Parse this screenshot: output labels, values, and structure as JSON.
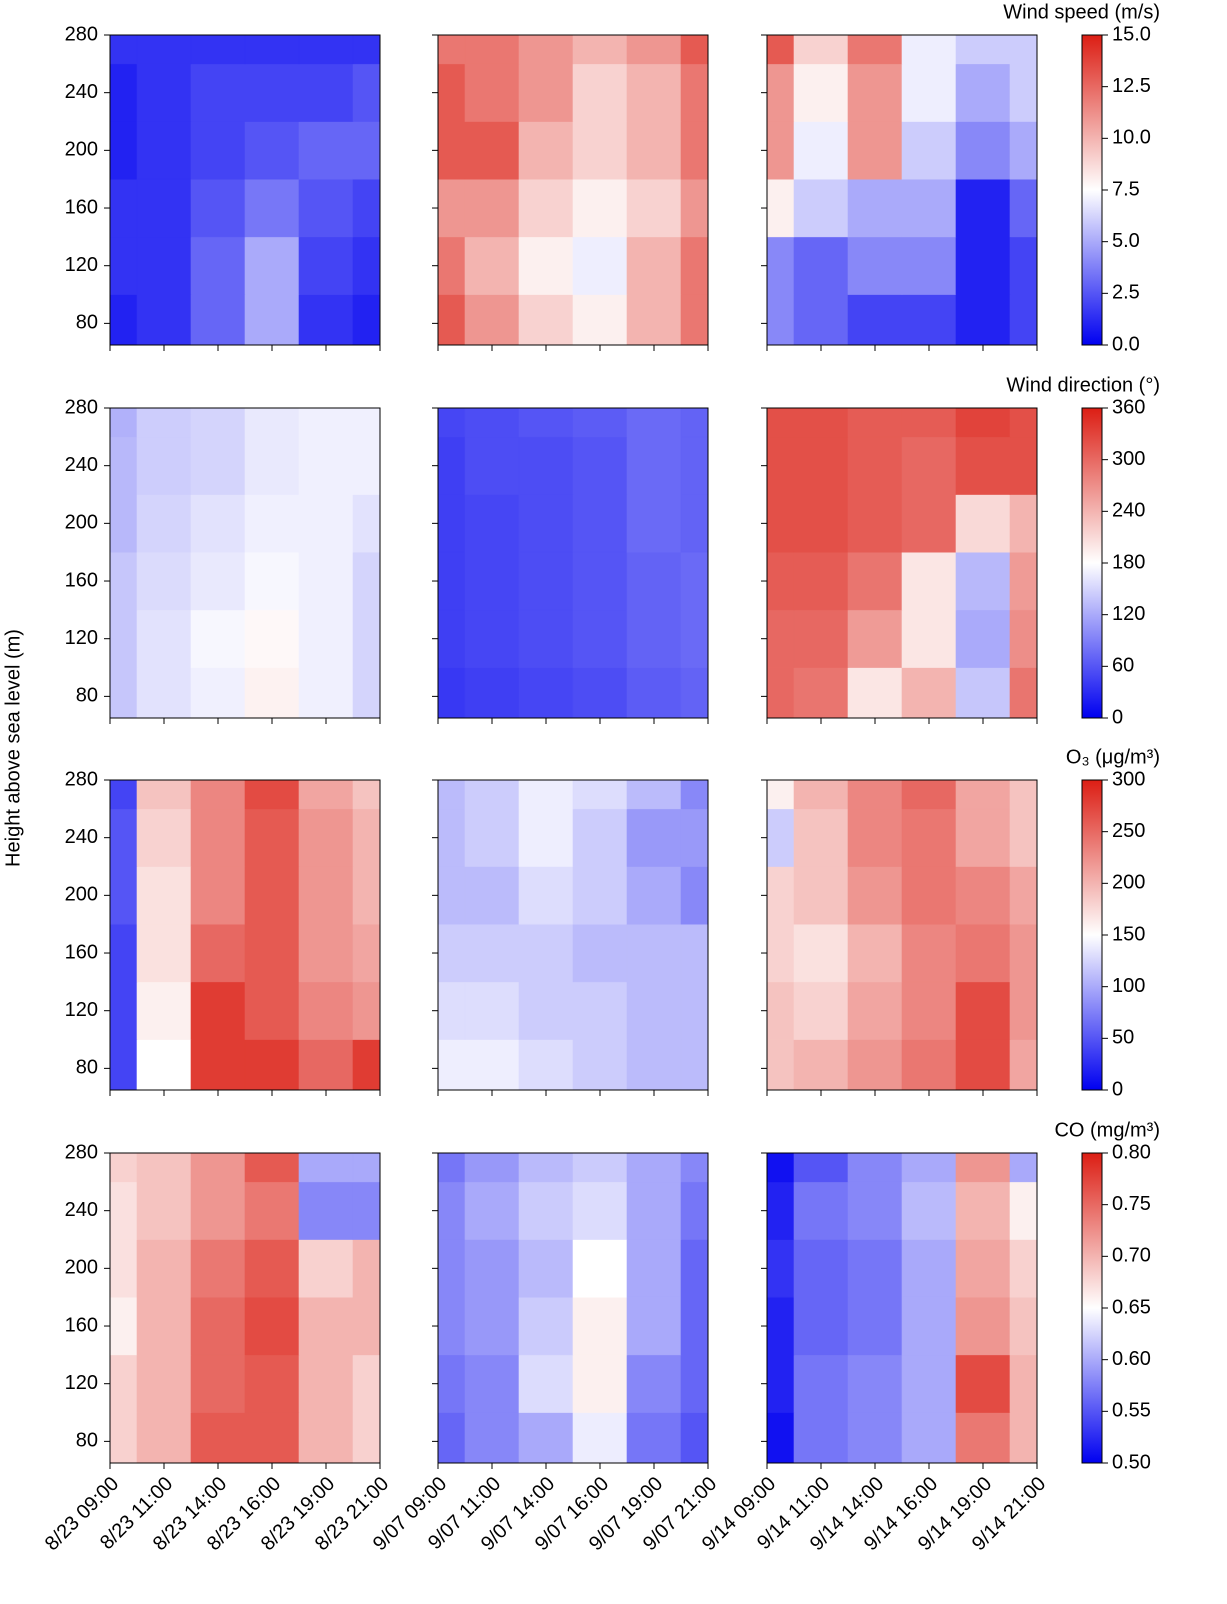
{
  "chart_data": [
    {
      "type": "contour",
      "ylabel": "Height above sea level (m)",
      "title": "Wind speed (m/s)",
      "clim": [
        0,
        15
      ],
      "cticks": [
        {
          "value": 0,
          "label": "0.0"
        },
        2.5,
        {
          "value": 5,
          "label": "5.0"
        },
        7.5,
        {
          "value": 10,
          "label": "10.0"
        },
        12.5,
        {
          "value": 15,
          "label": "15.0"
        }
      ],
      "ylim": [
        65,
        280
      ],
      "yticks": [
        80,
        120,
        160,
        200,
        240,
        280
      ],
      "panels": [
        {
          "values": [
            [
              1,
              1.5,
              3,
              5,
              1.5,
              1
            ],
            [
              1.5,
              1.5,
              3,
              5,
              2,
              1.5
            ],
            [
              1.5,
              1.5,
              2.5,
              3.5,
              2.5,
              2
            ],
            [
              1,
              1.5,
              2,
              2.5,
              3,
              3
            ],
            [
              1,
              1.5,
              2,
              2,
              2,
              2.5
            ],
            [
              1.5,
              1.5,
              1.5,
              1.5,
              1.5,
              1.5
            ]
          ]
        },
        {
          "values": [
            [
              13,
              11,
              9,
              8,
              10,
              12
            ],
            [
              12,
              10,
              8,
              7,
              10,
              12
            ],
            [
              11,
              11,
              9,
              8,
              9,
              11
            ],
            [
              13,
              13,
              10,
              9,
              10,
              12
            ],
            [
              13,
              12,
              11,
              9,
              10,
              12
            ],
            [
              12,
              12,
              11,
              10,
              11,
              13
            ]
          ]
        },
        {
          "values": [
            [
              4,
              3,
              2,
              2,
              1,
              2
            ],
            [
              4,
              3,
              4,
              4,
              1,
              2
            ],
            [
              8,
              6,
              5,
              5,
              1,
              3
            ],
            [
              11,
              7,
              11,
              6,
              4,
              5
            ],
            [
              11,
              8,
              11,
              7,
              5,
              6
            ],
            [
              13,
              9,
              12,
              7,
              6,
              6
            ]
          ]
        }
      ]
    },
    {
      "type": "contour",
      "title": "Wind direction (°)",
      "clim": [
        0,
        360
      ],
      "cticks": [
        0,
        60,
        120,
        180,
        240,
        300,
        360
      ],
      "ylim": [
        65,
        280
      ],
      "yticks": [
        80,
        120,
        160,
        200,
        240,
        280
      ],
      "panels": [
        {
          "values": [
            [
              140,
              160,
              170,
              190,
              170,
              150
            ],
            [
              140,
              160,
              175,
              185,
              170,
              150
            ],
            [
              140,
              155,
              165,
              175,
              170,
              150
            ],
            [
              130,
              150,
              160,
              170,
              170,
              160
            ],
            [
              130,
              145,
              150,
              165,
              170,
              170
            ],
            [
              125,
              145,
              150,
              165,
              170,
              170
            ]
          ]
        },
        {
          "values": [
            [
              40,
              45,
              50,
              55,
              65,
              70
            ],
            [
              45,
              50,
              55,
              60,
              70,
              75
            ],
            [
              45,
              50,
              55,
              60,
              70,
              75
            ],
            [
              45,
              50,
              55,
              60,
              75,
              70
            ],
            [
              45,
              55,
              55,
              60,
              75,
              70
            ],
            [
              50,
              55,
              60,
              65,
              75,
              70
            ]
          ]
        },
        {
          "values": [
            [
              300,
              290,
              200,
              240,
              140,
              290
            ],
            [
              300,
              300,
              260,
              200,
              120,
              270
            ],
            [
              310,
              310,
              290,
              200,
              130,
              260
            ],
            [
              320,
              320,
              310,
              300,
              210,
              240
            ],
            [
              320,
              320,
              310,
              300,
              320,
              320
            ],
            [
              320,
              320,
              310,
              310,
              330,
              320
            ]
          ]
        }
      ]
    },
    {
      "type": "contour",
      "title": "O₃ (μg/m³)",
      "clim": [
        0,
        300
      ],
      "cticks": [
        0,
        50,
        100,
        150,
        200,
        250,
        300
      ],
      "ylim": [
        65,
        280
      ],
      "yticks": [
        80,
        120,
        160,
        200,
        240,
        280
      ],
      "panels": [
        {
          "values": [
            [
              40,
              150,
              280,
              280,
              250,
              280
            ],
            [
              40,
              160,
              280,
              260,
              230,
              220
            ],
            [
              40,
              170,
              250,
              260,
              220,
              210
            ],
            [
              50,
              170,
              230,
              260,
              220,
              200
            ],
            [
              50,
              180,
              230,
              260,
              220,
              200
            ],
            [
              40,
              190,
              230,
              270,
              210,
              190
            ]
          ]
        },
        {
          "values": [
            [
              140,
              140,
              130,
              120,
              110,
              110
            ],
            [
              130,
              130,
              120,
              120,
              110,
              110
            ],
            [
              120,
              120,
              120,
              110,
              110,
              110
            ],
            [
              110,
              110,
              130,
              120,
              100,
              80
            ],
            [
              110,
              120,
              140,
              120,
              90,
              90
            ],
            [
              110,
              120,
              140,
              130,
              110,
              80
            ]
          ]
        },
        {
          "values": [
            [
              190,
              200,
              220,
              240,
              270,
              210
            ],
            [
              190,
              180,
              210,
              230,
              270,
              220
            ],
            [
              180,
              170,
              200,
              230,
              240,
              220
            ],
            [
              180,
              190,
              220,
              240,
              230,
              210
            ],
            [
              120,
              190,
              230,
              240,
              210,
              190
            ],
            [
              160,
              200,
              230,
              250,
              210,
              190
            ]
          ]
        }
      ]
    },
    {
      "type": "contour",
      "title": "CO (mg/m³)",
      "clim": [
        0.5,
        0.8
      ],
      "cticks": [
        {
          "value": 0.5,
          "label": "0.50"
        },
        0.55,
        {
          "value": 0.6,
          "label": "0.60"
        },
        0.65,
        {
          "value": 0.7,
          "label": "0.70"
        },
        0.75,
        {
          "value": 0.8,
          "label": "0.80"
        }
      ],
      "ylim": [
        65,
        280
      ],
      "yticks": [
        80,
        120,
        160,
        200,
        240,
        280
      ],
      "panels": [
        {
          "categories": [
            "8/23 09:00",
            "8/23 11:00",
            "8/23 14:00",
            "8/23 16:00",
            "8/23 19:00",
            "8/23 21:00"
          ],
          "values": [
            [
              0.68,
              0.7,
              0.76,
              0.76,
              0.7,
              0.68
            ],
            [
              0.68,
              0.7,
              0.75,
              0.76,
              0.7,
              0.68
            ],
            [
              0.66,
              0.7,
              0.75,
              0.77,
              0.7,
              0.7
            ],
            [
              0.67,
              0.7,
              0.74,
              0.76,
              0.68,
              0.7
            ],
            [
              0.67,
              0.69,
              0.72,
              0.74,
              0.58,
              0.58
            ],
            [
              0.68,
              0.69,
              0.72,
              0.76,
              0.6,
              0.6
            ]
          ]
        },
        {
          "categories": [
            "9/07 09:00",
            "9/07 11:00",
            "9/07 14:00",
            "9/07 16:00",
            "9/07 19:00",
            "9/07 21:00"
          ],
          "values": [
            [
              0.56,
              0.58,
              0.6,
              0.64,
              0.57,
              0.55
            ],
            [
              0.57,
              0.58,
              0.63,
              0.66,
              0.58,
              0.56
            ],
            [
              0.58,
              0.59,
              0.62,
              0.66,
              0.6,
              0.56
            ],
            [
              0.58,
              0.59,
              0.61,
              0.65,
              0.6,
              0.56
            ],
            [
              0.58,
              0.6,
              0.62,
              0.63,
              0.6,
              0.57
            ],
            [
              0.57,
              0.59,
              0.61,
              0.62,
              0.6,
              0.58
            ]
          ]
        },
        {
          "categories": [
            "9/14 09:00",
            "9/14 11:00",
            "9/14 14:00",
            "9/14 16:00",
            "9/14 19:00",
            "9/14 21:00"
          ],
          "values": [
            [
              0.51,
              0.57,
              0.58,
              0.6,
              0.74,
              0.7
            ],
            [
              0.52,
              0.57,
              0.58,
              0.6,
              0.77,
              0.7
            ],
            [
              0.52,
              0.56,
              0.57,
              0.6,
              0.72,
              0.69
            ],
            [
              0.53,
              0.56,
              0.57,
              0.6,
              0.71,
              0.68
            ],
            [
              0.52,
              0.57,
              0.58,
              0.61,
              0.7,
              0.66
            ],
            [
              0.51,
              0.55,
              0.58,
              0.6,
              0.72,
              0.6
            ]
          ]
        }
      ]
    }
  ]
}
